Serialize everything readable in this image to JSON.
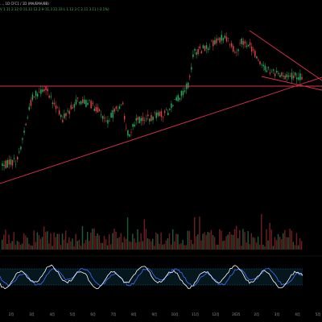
{
  "header": {
    "line1": "…, 1D  CFC1 / 1D  (MA/EMA/BB)",
    "line2": "V 1.11 2.12  O 11.11 12.2  H 11.3 22.33  L 1.12 3  C 2.11 3.11  (-3.1%)"
  },
  "month_axis": {
    "labels": [
      "2月",
      "3月",
      "4月",
      "5月",
      "6月",
      "7月",
      "8月",
      "9月",
      "10月",
      "11月",
      "12月",
      "2025",
      "2月",
      "3月",
      "4月",
      "5月"
    ]
  },
  "colors": {
    "background": "#000000",
    "up_candle": "#27a95a",
    "down_candle": "#e04040",
    "trendline": "#e0324a",
    "oscillator_line_1": "#ffffff",
    "oscillator_line_2": "#3f6fff",
    "oscillator_band": "#1e78a0",
    "volume_bar": "#6a1f1f"
  },
  "chart_data": {
    "type": "candlestick",
    "panels": [
      "price",
      "volume",
      "oscillator"
    ],
    "title": "",
    "xlabel": "",
    "ylabel": "",
    "price_path_shape": [
      [
        0,
        205
      ],
      [
        0.05,
        200
      ],
      [
        0.1,
        120
      ],
      [
        0.15,
        112
      ],
      [
        0.2,
        148
      ],
      [
        0.25,
        125
      ],
      [
        0.3,
        130
      ],
      [
        0.35,
        150
      ],
      [
        0.4,
        128
      ],
      [
        0.42,
        168
      ],
      [
        0.45,
        150
      ],
      [
        0.5,
        145
      ],
      [
        0.55,
        140
      ],
      [
        0.58,
        125
      ],
      [
        0.6,
        115
      ],
      [
        0.62,
        105
      ],
      [
        0.64,
        65
      ],
      [
        0.68,
        60
      ],
      [
        0.72,
        48
      ],
      [
        0.75,
        48
      ],
      [
        0.78,
        68
      ],
      [
        0.8,
        52
      ],
      [
        0.83,
        58
      ],
      [
        0.86,
        80
      ],
      [
        0.89,
        88
      ],
      [
        0.93,
        95
      ]
    ],
    "annotations": {
      "trendlines": [
        "rising support",
        "horizontal resistance",
        "falling upper",
        "falling lower"
      ]
    },
    "grid": false,
    "legend": "none"
  }
}
